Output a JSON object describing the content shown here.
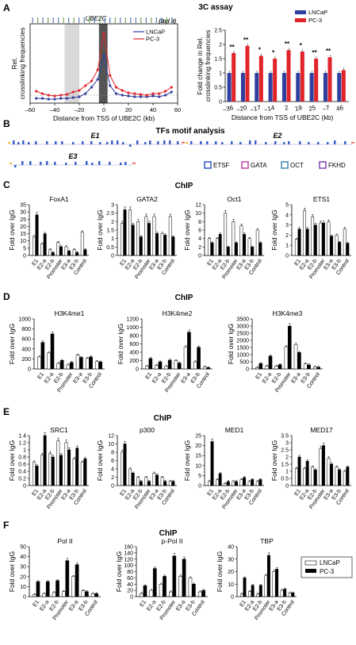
{
  "figure": {
    "panel_labels": [
      "A",
      "B",
      "C",
      "D",
      "E",
      "F"
    ],
    "panel_titles": {
      "A": "3C assay",
      "B": "TFs motif analysis",
      "C": "ChIP",
      "D": "ChIP",
      "E": "ChIP",
      "F": "ChIP"
    },
    "panelA_gene": "UBE2C",
    "panelA_enzyme": "(Bgl II)",
    "panelB_motif_legend": [
      "ETSF",
      "GATA",
      "OCT",
      "FKHD"
    ],
    "panelB_region_labels": [
      "E1",
      "E2",
      "E3"
    ]
  },
  "colors": {
    "lncap": "#2f3f9f",
    "pc3": "#e0242a",
    "etsf": "#3b5fc8",
    "gata": "#c24fa8",
    "oct": "#4e8fb3",
    "fkhd": "#8a4fb7"
  },
  "chart_data": [
    {
      "id": "A-left",
      "type": "line",
      "xlabel": "Distance from TSS of UBE2C (kb)",
      "ylabel": "Rel. crosslinking frequencies",
      "xlim": [
        -60,
        60
      ],
      "xticks": [
        -60,
        -40,
        -20,
        0,
        20,
        40,
        60
      ],
      "ylim": [
        0,
        1
      ],
      "legend": "top-right",
      "series": [
        {
          "name": "LNCaP",
          "x": [
            -55,
            -50,
            -45,
            -40,
            -35,
            -30,
            -25,
            -20,
            -15,
            -10,
            -5,
            0,
            5,
            10,
            15,
            20,
            25,
            30,
            35,
            40,
            45,
            50,
            55
          ],
          "values": [
            0.06,
            0.06,
            0.05,
            0.05,
            0.06,
            0.06,
            0.07,
            0.08,
            0.12,
            0.2,
            0.3,
            0.6,
            0.22,
            0.12,
            0.1,
            0.09,
            0.08,
            0.08,
            0.08,
            0.09,
            0.08,
            0.1,
            0.14
          ]
        },
        {
          "name": "PC-3",
          "x": [
            -55,
            -50,
            -45,
            -40,
            -35,
            -30,
            -25,
            -20,
            -15,
            -10,
            -5,
            0,
            5,
            10,
            15,
            20,
            25,
            30,
            35,
            40,
            45,
            50,
            55
          ],
          "values": [
            0.15,
            0.12,
            0.1,
            0.09,
            0.1,
            0.11,
            0.14,
            0.16,
            0.22,
            0.28,
            0.42,
            0.88,
            0.35,
            0.2,
            0.16,
            0.13,
            0.12,
            0.11,
            0.1,
            0.12,
            0.12,
            0.15,
            0.2
          ]
        }
      ]
    },
    {
      "id": "A-right",
      "type": "bar",
      "xlabel": "Distance from TSS of UBE2C (kb)",
      "ylabel": "Fold change in Rel. crosslinking frequencies",
      "ylim": [
        0,
        2.5
      ],
      "yticks": [
        0,
        0.5,
        1,
        1.5,
        2,
        2.5
      ],
      "categories": [
        "–36",
        "–20",
        "–17",
        "–14",
        "2",
        "19",
        "25",
        "–7",
        "46"
      ],
      "significance": [
        "**",
        "**",
        "*",
        "*",
        "**",
        "*",
        "**",
        "**",
        ""
      ],
      "legend": "top-right",
      "series": [
        {
          "name": "LNCaP",
          "values": [
            1,
            1,
            1,
            1,
            1,
            1,
            1,
            1,
            1
          ]
        },
        {
          "name": "PC-3",
          "values": [
            1.7,
            1.95,
            1.6,
            1.5,
            1.8,
            1.75,
            1.5,
            1.55,
            1.1
          ]
        }
      ]
    },
    {
      "id": "C",
      "type": "bar",
      "ylabel": "Fold over IgG",
      "categories": [
        "E1",
        "E2-a",
        "E2-b",
        "Promoter",
        "E3-a",
        "E3-b",
        "Control"
      ],
      "charts": [
        {
          "title": "FoxA1",
          "ylim": [
            0,
            35
          ],
          "yticks": [
            0,
            5,
            10,
            15,
            20,
            25,
            30,
            35
          ],
          "series": [
            {
              "name": "LNCaP",
              "values": [
                13,
                8,
                4,
                9,
                6,
                4,
                16
              ]
            },
            {
              "name": "PC-3",
              "values": [
                28,
                15,
                2,
                6,
                3,
                2,
                4
              ]
            }
          ]
        },
        {
          "title": "GATA2",
          "ylim": [
            0,
            3
          ],
          "yticks": [
            0,
            0.5,
            1,
            1.5,
            2,
            2.5,
            3
          ],
          "series": [
            {
              "name": "LNCaP",
              "values": [
                1.9,
                2.7,
                2.0,
                2.3,
                2.3,
                1.3,
                2.3
              ]
            },
            {
              "name": "PC-3",
              "values": [
                2.7,
                1.8,
                1.1,
                1.9,
                1.3,
                1.2,
                1.1
              ]
            }
          ]
        },
        {
          "title": "Oct1",
          "ylim": [
            0,
            12
          ],
          "yticks": [
            0,
            2,
            4,
            6,
            8,
            10,
            12
          ],
          "series": [
            {
              "name": "LNCaP",
              "values": [
                4,
                4,
                10,
                8,
                7,
                4,
                6
              ]
            },
            {
              "name": "PC-3",
              "values": [
                3,
                5,
                2,
                3,
                5,
                2,
                3
              ]
            }
          ]
        },
        {
          "title": "ETS1",
          "ylim": [
            0,
            5
          ],
          "yticks": [
            0,
            1,
            2,
            3,
            4,
            5
          ],
          "series": [
            {
              "name": "LNCaP",
              "values": [
                1.6,
                4.4,
                3.8,
                3.2,
                3.3,
                2.0,
                2.6
              ]
            },
            {
              "name": "PC-3",
              "values": [
                2.6,
                2.6,
                3.0,
                3.2,
                1.9,
                1.3,
                1.2
              ]
            }
          ]
        }
      ]
    },
    {
      "id": "D",
      "type": "bar",
      "ylabel": "Fold over IgG",
      "categories": [
        "E1",
        "E2-a",
        "E2-b",
        "Promoter",
        "E3-a",
        "E3-b",
        "Control"
      ],
      "charts": [
        {
          "title": "H3K4me1",
          "ylim": [
            0,
            1000
          ],
          "yticks": [
            0,
            200,
            400,
            600,
            800,
            1000
          ],
          "series": [
            {
              "name": "LNCaP",
              "values": [
                240,
                320,
                110,
                80,
                280,
                210,
                150
              ]
            },
            {
              "name": "PC-3",
              "values": [
                530,
                700,
                170,
                130,
                230,
                240,
                140
              ]
            }
          ]
        },
        {
          "title": "H3K4me2",
          "ylim": [
            0,
            1200
          ],
          "yticks": [
            0,
            200,
            400,
            600,
            800,
            1000,
            1200
          ],
          "series": [
            {
              "name": "LNCaP",
              "values": [
                60,
                90,
                60,
                200,
                530,
                170,
                50
              ]
            },
            {
              "name": "PC-3",
              "values": [
                250,
                170,
                210,
                140,
                880,
                520,
                30
              ]
            }
          ]
        },
        {
          "title": "H3K4me3",
          "ylim": [
            0,
            3500
          ],
          "yticks": [
            0,
            500,
            1000,
            1500,
            2000,
            2500,
            3000,
            3500
          ],
          "series": [
            {
              "name": "LNCaP",
              "values": [
                100,
                200,
                200,
                1550,
                1700,
                350,
                150
              ]
            },
            {
              "name": "PC-3",
              "values": [
                380,
                900,
                300,
                3000,
                1150,
                280,
                120
              ]
            }
          ]
        }
      ]
    },
    {
      "id": "E",
      "type": "bar",
      "ylabel": "Fold over IgG",
      "categories": [
        "E1",
        "E2-a",
        "E2-b",
        "Promoter",
        "E3-a",
        "E3-b",
        "Control"
      ],
      "charts": [
        {
          "title": "SRC1",
          "ylim": [
            0,
            1.4
          ],
          "yticks": [
            0,
            0.2,
            0.4,
            0.6,
            0.8,
            1,
            1.2,
            1.4
          ],
          "series": [
            {
              "name": "LNCaP",
              "values": [
                0.65,
                0.85,
                0.9,
                1.25,
                1.2,
                0.75,
                0.65
              ]
            },
            {
              "name": "PC-3",
              "values": [
                0.55,
                1.4,
                0.8,
                0.85,
                1.0,
                1.05,
                0.75
              ]
            }
          ]
        },
        {
          "title": "p300",
          "ylim": [
            0,
            12
          ],
          "yticks": [
            0,
            2,
            4,
            6,
            8,
            10,
            12
          ],
          "series": [
            {
              "name": "LNCaP",
              "values": [
                8,
                4,
                2,
                2,
                3,
                2,
                1
              ]
            },
            {
              "name": "PC-3",
              "values": [
                10,
                3,
                1,
                1,
                2.5,
                1,
                1
              ]
            }
          ]
        },
        {
          "title": "MED1",
          "ylim": [
            0,
            25
          ],
          "yticks": [
            0,
            5,
            10,
            15,
            20,
            25
          ],
          "series": [
            {
              "name": "LNCaP",
              "values": [
                2,
                3,
                1,
                2,
                3,
                2,
                2
              ]
            },
            {
              "name": "PC-3",
              "values": [
                22,
                6,
                2,
                2,
                4,
                3,
                3
              ]
            }
          ]
        },
        {
          "title": "MED17",
          "ylim": [
            0,
            3.5
          ],
          "yticks": [
            0,
            0.5,
            1,
            1.5,
            2,
            2.5,
            3,
            3.5
          ],
          "series": [
            {
              "name": "LNCaP",
              "values": [
                1.2,
                1.2,
                1.3,
                2.6,
                1.9,
                1.3,
                1.0
              ]
            },
            {
              "name": "PC-3",
              "values": [
                2.0,
                1.7,
                1.1,
                2.8,
                1.5,
                1.1,
                1.3
              ]
            }
          ]
        }
      ]
    },
    {
      "id": "F",
      "type": "bar",
      "ylabel": "Fold over IgG",
      "categories": [
        "E1",
        "E2-a",
        "E2-b",
        "Promoter",
        "E3-a",
        "E3-b",
        "Control"
      ],
      "legend": "right",
      "charts": [
        {
          "title": "Pol II",
          "ylim": [
            0,
            50
          ],
          "yticks": [
            0,
            10,
            20,
            30,
            40,
            50
          ],
          "series": [
            {
              "name": "LNCaP",
              "values": [
                2,
                3,
                4,
                5,
                20,
                6,
                3
              ]
            },
            {
              "name": "PC-3",
              "values": [
                15,
                15,
                16,
                36,
                32,
                5,
                3
              ]
            }
          ]
        },
        {
          "title": "p-Pol II",
          "ylim": [
            0,
            160
          ],
          "yticks": [
            0,
            20,
            40,
            60,
            80,
            100,
            120,
            140,
            160
          ],
          "series": [
            {
              "name": "LNCaP",
              "values": [
                10,
                20,
                40,
                15,
                65,
                60,
                15
              ]
            },
            {
              "name": "PC-3",
              "values": [
                35,
                90,
                65,
                130,
                120,
                40,
                20
              ]
            }
          ]
        },
        {
          "title": "TBP",
          "ylim": [
            0,
            40
          ],
          "yticks": [
            0,
            10,
            20,
            30,
            40
          ],
          "series": [
            {
              "name": "LNCaP",
              "values": [
                2,
                4,
                2,
                17,
                20,
                5,
                3
              ]
            },
            {
              "name": "PC-3",
              "values": [
                15,
                9,
                9,
                33,
                22,
                6,
                3
              ]
            }
          ]
        }
      ]
    }
  ]
}
